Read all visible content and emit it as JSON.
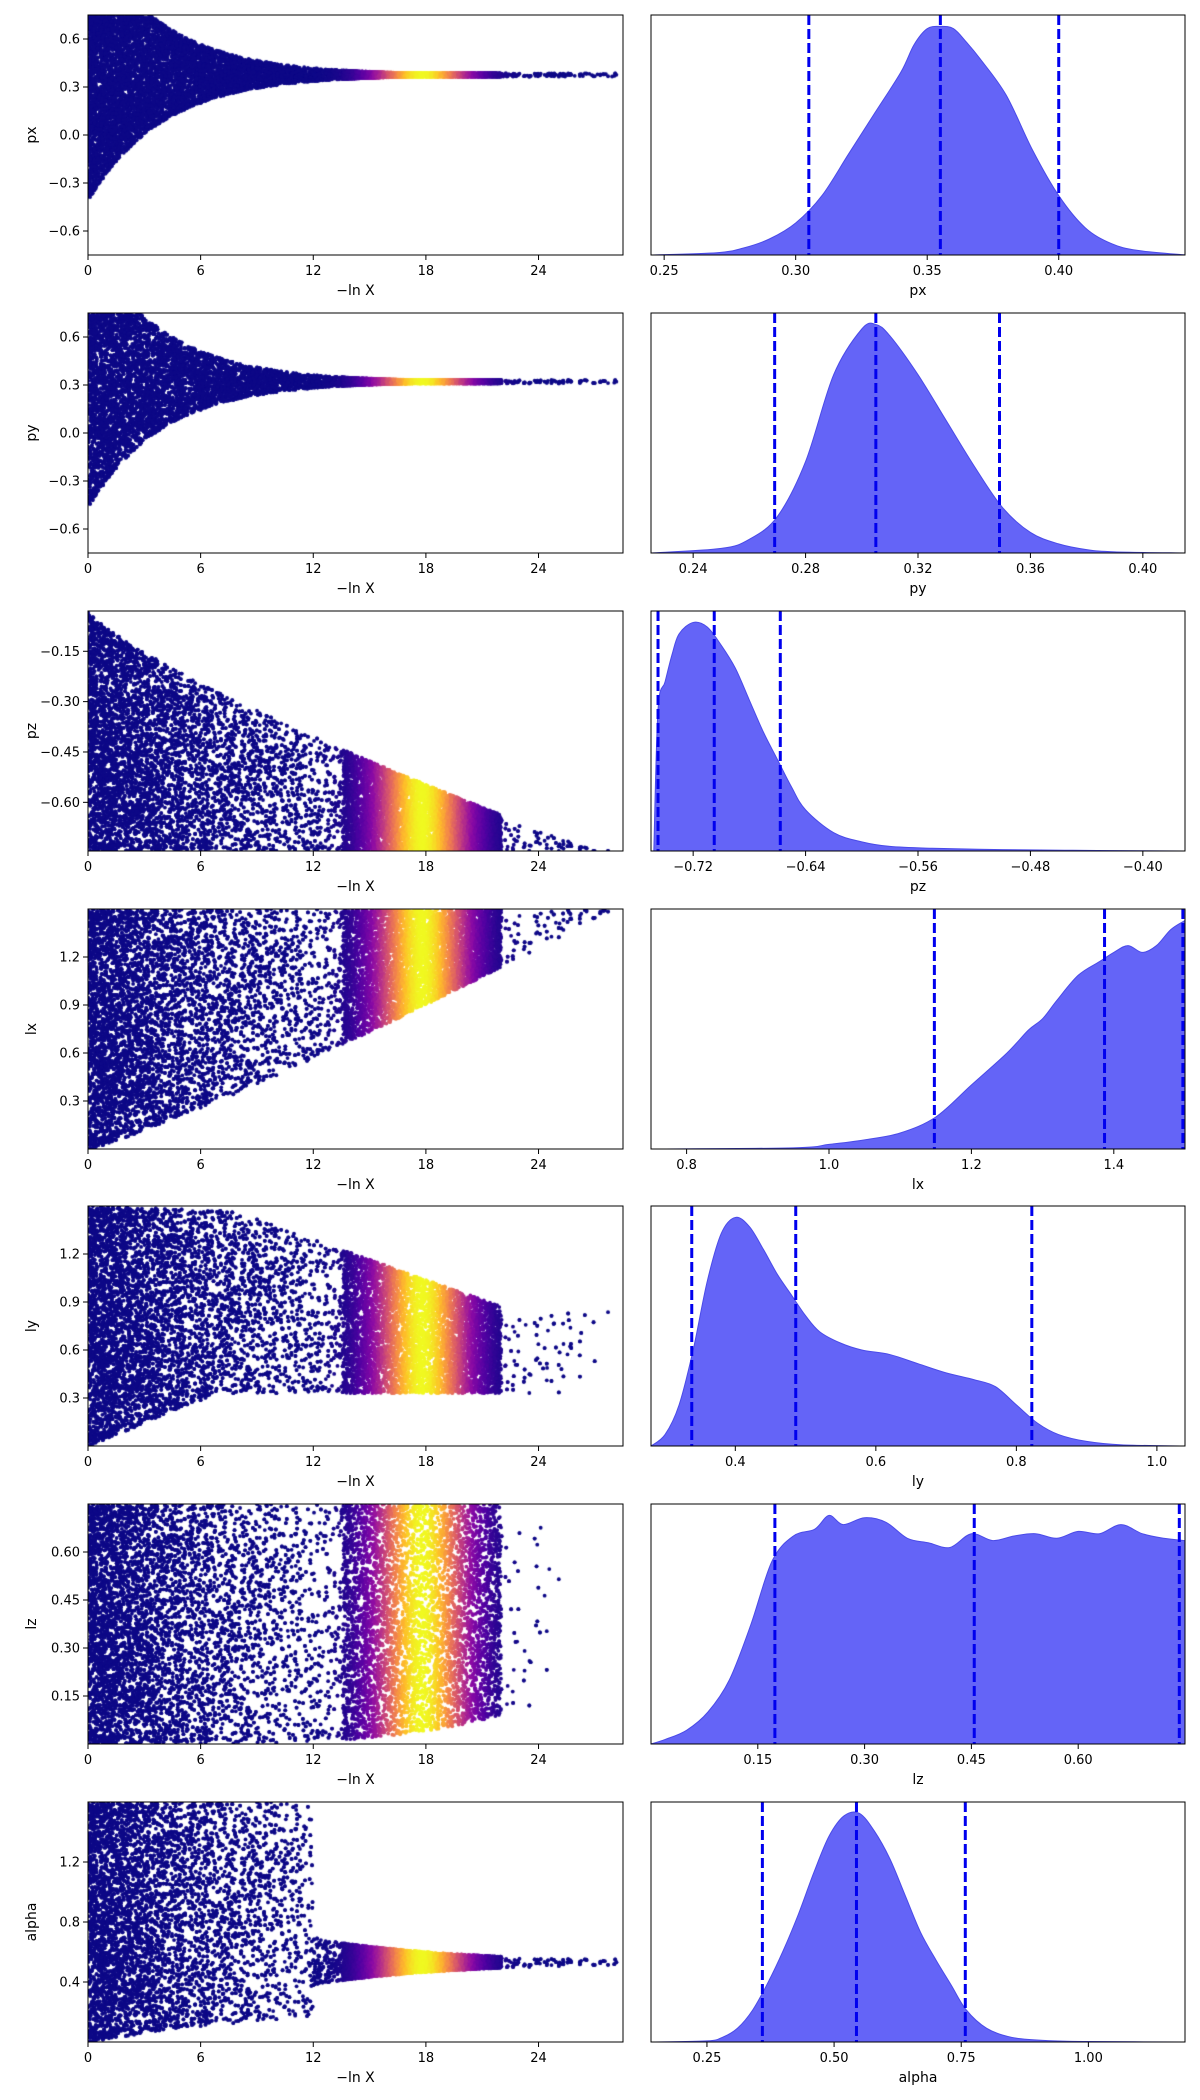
{
  "chart_data": [
    {
      "panel": "trace",
      "type": "scatter",
      "param": "px",
      "xlabel": "−ln X",
      "ylabel": "px",
      "xlim": [
        0,
        28.5
      ],
      "ylim": [
        -0.75,
        0.75
      ],
      "xticks": [
        "0",
        "6",
        "12",
        "18",
        "24"
      ],
      "xtick_values": [
        0,
        6,
        12,
        18,
        24
      ],
      "yticks": [
        "−0.6",
        "−0.3",
        "0.0",
        "0.3",
        "0.6"
      ],
      "ytick_values": [
        -0.6,
        -0.3,
        0,
        0.3,
        0.6
      ],
      "band": {
        "type": "converge",
        "lo_start": -0.75,
        "hi_start": 0.75,
        "target": 0.375,
        "scale": 4.0,
        "min_width": 0.01
      },
      "peak_x": 17.8,
      "peak_width": 3.0
    },
    {
      "panel": "trace",
      "type": "scatter",
      "param": "py",
      "xlabel": "−ln X",
      "ylabel": "py",
      "xlim": [
        0,
        28.5
      ],
      "ylim": [
        -0.75,
        0.75
      ],
      "xticks": [
        "0",
        "6",
        "12",
        "18",
        "24"
      ],
      "xtick_values": [
        0,
        6,
        12,
        18,
        24
      ],
      "yticks": [
        "−0.6",
        "−0.3",
        "0.0",
        "0.3",
        "0.6"
      ],
      "ytick_values": [
        -0.6,
        -0.3,
        0,
        0.3,
        0.6
      ],
      "band": {
        "type": "converge",
        "lo_start": -0.75,
        "hi_start": 0.75,
        "target": 0.32,
        "scale": 4.0,
        "min_width": 0.01
      },
      "peak_x": 17.8,
      "peak_width": 3.0
    },
    {
      "panel": "trace",
      "type": "scatter",
      "param": "pz",
      "xlabel": "−ln X",
      "ylabel": "pz",
      "xlim": [
        0,
        28.5
      ],
      "ylim": [
        -0.745,
        -0.03
      ],
      "xticks": [
        "0",
        "6",
        "12",
        "18",
        "24"
      ],
      "xtick_values": [
        0,
        6,
        12,
        18,
        24
      ],
      "yticks": [
        "−0.60",
        "−0.45",
        "−0.30",
        "−0.15"
      ],
      "ytick_values": [
        -0.6,
        -0.45,
        -0.3,
        -0.15
      ],
      "band": {
        "type": "wedge",
        "lo": -0.745,
        "hi_start": -0.03,
        "hi_end": -0.745,
        "x_end": 27.0
      },
      "peak_x": 17.8,
      "peak_width": 3.0
    },
    {
      "panel": "trace",
      "type": "scatter",
      "param": "lx",
      "xlabel": "−ln X",
      "ylabel": "lx",
      "xlim": [
        0,
        28.5
      ],
      "ylim": [
        0.0,
        1.5
      ],
      "xticks": [
        "0",
        "6",
        "12",
        "18",
        "24"
      ],
      "xtick_values": [
        0,
        6,
        12,
        18,
        24
      ],
      "yticks": [
        "0.3",
        "0.6",
        "0.9",
        "1.2"
      ],
      "ytick_values": [
        0.3,
        0.6,
        0.9,
        1.2
      ],
      "band": {
        "type": "rise",
        "hi": 1.5,
        "lo_start": 0.0,
        "lo_end": 1.5,
        "x_end": 28.0
      },
      "peak_x": 17.8,
      "peak_width": 3.0
    },
    {
      "panel": "trace",
      "type": "scatter",
      "param": "ly",
      "xlabel": "−ln X",
      "ylabel": "ly",
      "xlim": [
        0,
        28.5
      ],
      "ylim": [
        0.0,
        1.5
      ],
      "xticks": [
        "0",
        "6",
        "12",
        "18",
        "24"
      ],
      "xtick_values": [
        0,
        6,
        12,
        18,
        24
      ],
      "yticks": [
        "0.3",
        "0.6",
        "0.9",
        "1.2"
      ],
      "ytick_values": [
        0.3,
        0.6,
        0.9,
        1.2
      ],
      "band": {
        "type": "funnel",
        "lo_start": 0.0,
        "lo_end": 0.33,
        "hi_start": 1.5,
        "hi_end": 0.95,
        "x_end": 26.5,
        "x_knee": 14.0
      },
      "peak_x": 17.8,
      "peak_width": 3.0
    },
    {
      "panel": "trace",
      "type": "scatter",
      "param": "lz",
      "xlabel": "−ln X",
      "ylabel": "lz",
      "xlim": [
        0,
        28.5
      ],
      "ylim": [
        0.0,
        0.75
      ],
      "xticks": [
        "0",
        "6",
        "12",
        "18",
        "24"
      ],
      "xtick_values": [
        0,
        6,
        12,
        18,
        24
      ],
      "yticks": [
        "0.15",
        "0.30",
        "0.45",
        "0.60"
      ],
      "ytick_values": [
        0.15,
        0.3,
        0.45,
        0.6
      ],
      "band": {
        "type": "flat",
        "lo": 0.0,
        "hi": 0.75,
        "x_end": 24.5,
        "lo_end": 0.14,
        "hi_end": 0.75
      },
      "peak_x": 17.8,
      "peak_width": 3.0
    },
    {
      "panel": "trace",
      "type": "scatter",
      "param": "alpha",
      "xlabel": "−ln X",
      "ylabel": "alpha",
      "xlim": [
        0,
        28.5
      ],
      "ylim": [
        0.0,
        1.6
      ],
      "xticks": [
        "0",
        "6",
        "12",
        "18",
        "24"
      ],
      "xtick_values": [
        0,
        6,
        12,
        18,
        24
      ],
      "yticks": [
        "0.4",
        "0.8",
        "1.2"
      ],
      "ytick_values": [
        0.4,
        0.8,
        1.2
      ],
      "band": {
        "type": "converge",
        "lo_start": 0.0,
        "hi_start": 1.6,
        "target": 0.53,
        "scale": 7.0,
        "min_width": 0.02,
        "x_hold": 12.0
      },
      "peak_x": 17.8,
      "peak_width": 3.0
    },
    {
      "panel": "marginal",
      "type": "area",
      "param": "px",
      "xlabel": "px",
      "xlim": [
        0.245,
        0.448
      ],
      "ylim": [
        0,
        1.05
      ],
      "xticks": [
        "0.25",
        "0.30",
        "0.35",
        "0.40"
      ],
      "xtick_values": [
        0.25,
        0.3,
        0.35,
        0.4
      ],
      "x": [
        0.245,
        0.27,
        0.28,
        0.29,
        0.3,
        0.31,
        0.32,
        0.33,
        0.34,
        0.345,
        0.35,
        0.355,
        0.36,
        0.365,
        0.37,
        0.38,
        0.39,
        0.4,
        0.41,
        0.42,
        0.43,
        0.448
      ],
      "y": [
        0,
        0.01,
        0.03,
        0.07,
        0.14,
        0.26,
        0.44,
        0.62,
        0.8,
        0.92,
        0.99,
        1.0,
        0.99,
        0.93,
        0.86,
        0.7,
        0.46,
        0.26,
        0.12,
        0.05,
        0.02,
        0
      ],
      "quantiles": [
        0.305,
        0.355,
        0.4
      ]
    },
    {
      "panel": "marginal",
      "type": "area",
      "param": "py",
      "xlabel": "py",
      "xlim": [
        0.225,
        0.415
      ],
      "ylim": [
        0,
        1.05
      ],
      "xticks": [
        "0.24",
        "0.28",
        "0.32",
        "0.36",
        "0.40"
      ],
      "xtick_values": [
        0.24,
        0.28,
        0.32,
        0.36,
        0.4
      ],
      "x": [
        0.225,
        0.25,
        0.26,
        0.27,
        0.28,
        0.29,
        0.3,
        0.305,
        0.31,
        0.32,
        0.33,
        0.34,
        0.35,
        0.36,
        0.37,
        0.38,
        0.39,
        0.415
      ],
      "y": [
        0,
        0.02,
        0.06,
        0.16,
        0.4,
        0.78,
        0.98,
        1.0,
        0.95,
        0.78,
        0.58,
        0.38,
        0.2,
        0.09,
        0.04,
        0.015,
        0.005,
        0
      ],
      "quantiles": [
        0.269,
        0.305,
        0.349
      ]
    },
    {
      "panel": "marginal",
      "type": "area",
      "param": "pz",
      "xlabel": "pz",
      "xlim": [
        -0.75,
        -0.37
      ],
      "ylim": [
        0,
        1.05
      ],
      "xticks": [
        "−0.72",
        "−0.64",
        "−0.56",
        "−0.48",
        "−0.40"
      ],
      "xtick_values": [
        -0.72,
        -0.64,
        -0.56,
        -0.48,
        -0.4
      ],
      "x": [
        -0.748,
        -0.745,
        -0.74,
        -0.735,
        -0.73,
        -0.72,
        -0.71,
        -0.7,
        -0.69,
        -0.68,
        -0.67,
        -0.66,
        -0.65,
        -0.64,
        -0.62,
        -0.6,
        -0.58,
        -0.55,
        -0.5,
        -0.45,
        -0.4,
        -0.37
      ],
      "y": [
        0,
        0.62,
        0.74,
        0.86,
        0.95,
        1.0,
        0.98,
        0.9,
        0.8,
        0.66,
        0.52,
        0.4,
        0.28,
        0.18,
        0.08,
        0.04,
        0.02,
        0.012,
        0.006,
        0.003,
        0.001,
        0
      ],
      "quantiles": [
        -0.745,
        -0.705,
        -0.658
      ]
    },
    {
      "panel": "marginal",
      "type": "area",
      "param": "lx",
      "xlabel": "lx",
      "xlim": [
        0.75,
        1.5
      ],
      "ylim": [
        0,
        1.05
      ],
      "xticks": [
        "0.8",
        "1.0",
        "1.2",
        "1.4"
      ],
      "xtick_values": [
        0.8,
        1.0,
        1.2,
        1.4
      ],
      "x": [
        0.75,
        0.95,
        1.0,
        1.05,
        1.1,
        1.15,
        1.2,
        1.25,
        1.28,
        1.3,
        1.32,
        1.35,
        1.38,
        1.4,
        1.42,
        1.44,
        1.46,
        1.48,
        1.5
      ],
      "y": [
        0,
        0.005,
        0.02,
        0.04,
        0.07,
        0.14,
        0.28,
        0.42,
        0.52,
        0.57,
        0.65,
        0.76,
        0.82,
        0.86,
        0.89,
        0.86,
        0.89,
        0.96,
        1.0
      ],
      "quantiles": [
        1.148,
        1.387,
        1.497
      ]
    },
    {
      "panel": "marginal",
      "type": "area",
      "param": "ly",
      "xlabel": "ly",
      "xlim": [
        0.28,
        1.04
      ],
      "ylim": [
        0,
        1.05
      ],
      "xticks": [
        "0.4",
        "0.6",
        "0.8",
        "1.0"
      ],
      "xtick_values": [
        0.4,
        0.6,
        0.8,
        1.0
      ],
      "x": [
        0.28,
        0.3,
        0.32,
        0.34,
        0.36,
        0.38,
        0.4,
        0.42,
        0.44,
        0.46,
        0.48,
        0.5,
        0.52,
        0.55,
        0.58,
        0.62,
        0.66,
        0.7,
        0.74,
        0.77,
        0.8,
        0.83,
        0.86,
        0.9,
        0.95,
        1.04
      ],
      "y": [
        0,
        0.05,
        0.18,
        0.42,
        0.72,
        0.93,
        1.0,
        0.96,
        0.86,
        0.75,
        0.66,
        0.57,
        0.5,
        0.45,
        0.42,
        0.4,
        0.36,
        0.32,
        0.29,
        0.26,
        0.18,
        0.1,
        0.05,
        0.02,
        0.005,
        0
      ],
      "quantiles": [
        0.338,
        0.486,
        0.822
      ]
    },
    {
      "panel": "marginal",
      "type": "area",
      "param": "lz",
      "xlabel": "lz",
      "xlim": [
        0.0,
        0.75
      ],
      "ylim": [
        0,
        1.05
      ],
      "xticks": [
        "0.15",
        "0.30",
        "0.45",
        "0.60"
      ],
      "xtick_values": [
        0.15,
        0.3,
        0.45,
        0.6
      ],
      "x": [
        0.0,
        0.02,
        0.05,
        0.08,
        0.11,
        0.14,
        0.17,
        0.2,
        0.23,
        0.25,
        0.27,
        0.3,
        0.33,
        0.36,
        0.39,
        0.42,
        0.45,
        0.48,
        0.51,
        0.54,
        0.57,
        0.6,
        0.63,
        0.66,
        0.69,
        0.72,
        0.75
      ],
      "y": [
        0,
        0.02,
        0.06,
        0.14,
        0.28,
        0.52,
        0.8,
        0.91,
        0.94,
        1.0,
        0.96,
        0.99,
        0.97,
        0.9,
        0.88,
        0.86,
        0.92,
        0.89,
        0.91,
        0.92,
        0.9,
        0.93,
        0.92,
        0.96,
        0.92,
        0.9,
        0.89
      ],
      "quantiles": [
        0.174,
        0.454,
        0.742
      ]
    },
    {
      "panel": "marginal",
      "type": "area",
      "param": "alpha",
      "xlabel": "alpha",
      "xlim": [
        0.14,
        1.19
      ],
      "ylim": [
        0,
        1.05
      ],
      "xticks": [
        "0.25",
        "0.50",
        "0.75",
        "1.00"
      ],
      "xtick_values": [
        0.25,
        0.5,
        0.75,
        1.0
      ],
      "x": [
        0.14,
        0.25,
        0.28,
        0.31,
        0.34,
        0.37,
        0.4,
        0.43,
        0.46,
        0.49,
        0.52,
        0.55,
        0.58,
        0.61,
        0.64,
        0.67,
        0.7,
        0.73,
        0.76,
        0.8,
        0.85,
        0.92,
        1.0,
        1.19
      ],
      "y": [
        0,
        0.005,
        0.02,
        0.06,
        0.14,
        0.26,
        0.4,
        0.56,
        0.74,
        0.9,
        0.99,
        1.0,
        0.92,
        0.8,
        0.64,
        0.48,
        0.36,
        0.25,
        0.14,
        0.06,
        0.02,
        0.006,
        0.002,
        0
      ],
      "quantiles": [
        0.359,
        0.544,
        0.758
      ]
    }
  ],
  "colors": {
    "density_fill": "#6464f7",
    "density_edge": "#4a4ae8",
    "quantile_line": "#0000ee",
    "trace_colormap": [
      "#0d0887",
      "#5402a3",
      "#8b0aa5",
      "#b83289",
      "#db5c68",
      "#f48849",
      "#febd2a",
      "#f0f921"
    ]
  }
}
